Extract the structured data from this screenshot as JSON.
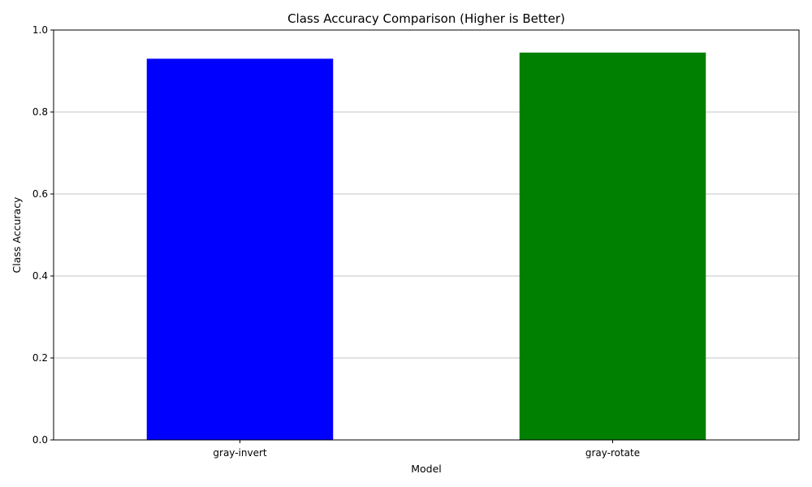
{
  "chart_data": {
    "type": "bar",
    "title": "Class Accuracy Comparison (Higher is Better)",
    "xlabel": "Model",
    "ylabel": "Class Accuracy",
    "categories": [
      "gray-invert",
      "gray-rotate"
    ],
    "values": [
      0.93,
      0.945
    ],
    "colors": [
      "#0000ff",
      "#008000"
    ],
    "ylim": [
      0,
      1.0
    ],
    "yticks": [
      0.0,
      0.2,
      0.4,
      0.6,
      0.8,
      1.0
    ],
    "ytick_labels": [
      "0.0",
      "0.2",
      "0.4",
      "0.6",
      "0.8",
      "1.0"
    ],
    "grid": "y-axis"
  }
}
